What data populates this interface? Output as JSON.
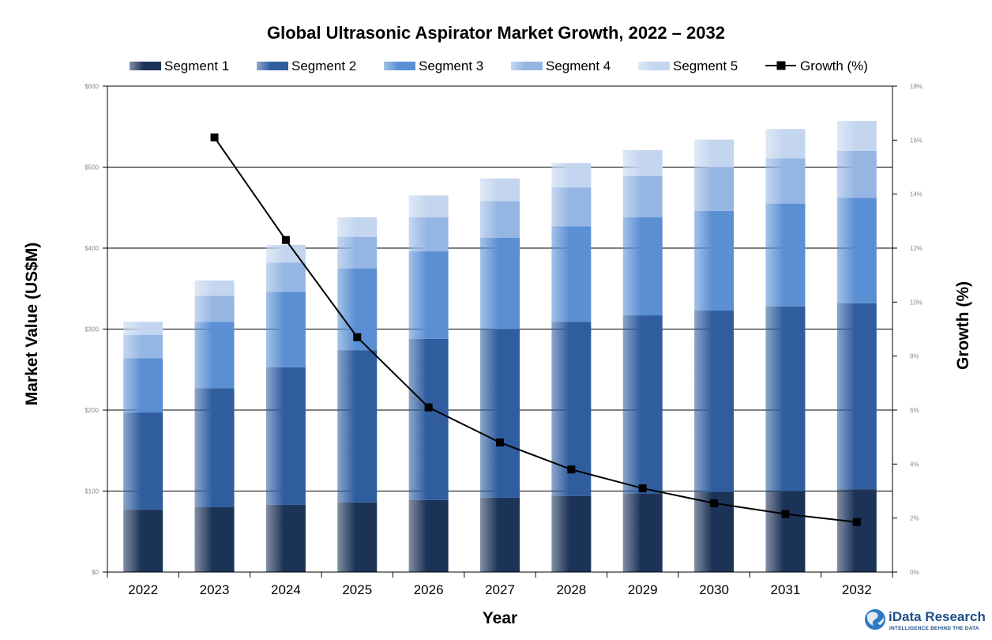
{
  "chart_data": {
    "type": "bar",
    "stacked": true,
    "title": "Global Ultrasonic Aspirator Market Growth, 2022 – 2032",
    "xlabel": "Year",
    "ylabel": "Market Value (US$M)",
    "y2label": "Growth (%)",
    "categories": [
      "2022",
      "2023",
      "2024",
      "2025",
      "2026",
      "2027",
      "2028",
      "2029",
      "2030",
      "2031",
      "2032"
    ],
    "ylim": [
      0,
      600
    ],
    "yticks": [
      0,
      100,
      200,
      300,
      400,
      500,
      600
    ],
    "ytick_labels": [
      "$0",
      "$100",
      "$200",
      "$300",
      "$400",
      "$500",
      "$600"
    ],
    "y2lim": [
      0,
      18
    ],
    "y2ticks": [
      0,
      2,
      4,
      6,
      8,
      10,
      12,
      14,
      16,
      18
    ],
    "y2tick_labels": [
      "0%",
      "2%",
      "4%",
      "6%",
      "8%",
      "10%",
      "12%",
      "14%",
      "16%",
      "18%"
    ],
    "grid": true,
    "legend_position": "top",
    "series": [
      {
        "name": "Segment 1",
        "color": "#1c3358",
        "values": [
          77,
          80,
          83,
          86,
          89,
          92,
          94,
          97,
          99,
          100,
          102
        ]
      },
      {
        "name": "Segment 2",
        "color": "#2f5d9e",
        "values": [
          120,
          147,
          170,
          188,
          199,
          208,
          215,
          220,
          224,
          228,
          230
        ]
      },
      {
        "name": "Segment 3",
        "color": "#5b8fd4",
        "values": [
          67,
          82,
          93,
          101,
          108,
          113,
          118,
          121,
          123,
          127,
          130
        ]
      },
      {
        "name": "Segment 4",
        "color": "#95b6e3",
        "values": [
          29,
          32,
          36,
          39,
          42,
          45,
          48,
          51,
          54,
          56,
          58
        ]
      },
      {
        "name": "Segment 5",
        "color": "#c4d6ef",
        "values": [
          16,
          19,
          22,
          24,
          27,
          28,
          30,
          32,
          34,
          36,
          37
        ]
      }
    ],
    "line_series": {
      "name": "Growth (%)",
      "axis": "right",
      "color": "#000000",
      "x": [
        "2023",
        "2024",
        "2025",
        "2026",
        "2027",
        "2028",
        "2029",
        "2030",
        "2031",
        "2032"
      ],
      "values": [
        16.1,
        12.3,
        8.7,
        6.1,
        4.8,
        3.8,
        3.1,
        2.55,
        2.15,
        1.85
      ]
    }
  },
  "logo": {
    "name": "iData Research",
    "tagline": "INTELLIGENCE BEHIND THE DATA"
  }
}
